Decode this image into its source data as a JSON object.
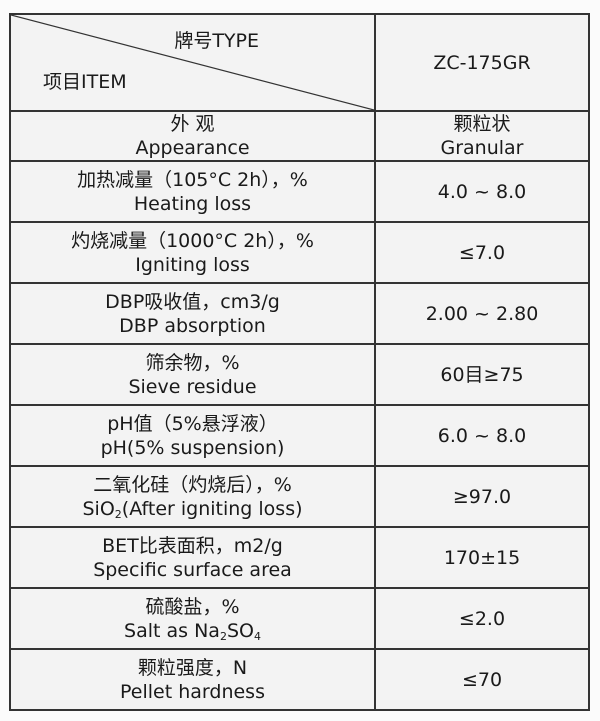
{
  "header": {
    "type_label": "牌号TYPE",
    "item_label": "项目ITEM",
    "product": "ZC-175GR"
  },
  "rows": [
    {
      "zh": "外 观",
      "en": "Appearance",
      "value": "颗粒状",
      "value_en": "Granular"
    },
    {
      "zh": "加热减量（105°C 2h），%",
      "en": "Heating loss",
      "value": "4.0 ~ 8.0"
    },
    {
      "zh": "灼烧减量（1000°C 2h），%",
      "en": "Igniting loss",
      "value": "≤7.0"
    },
    {
      "zh": "DBP吸收值，cm3/g",
      "en": "DBP absorption",
      "value": "2.00 ~ 2.80"
    },
    {
      "zh": "筛余物，%",
      "en": "Sieve residue",
      "value": "60目≥75"
    },
    {
      "zh": "pH值（5%悬浮液）",
      "en": "pH(5% suspension)",
      "value": "6.0 ~ 8.0"
    },
    {
      "zh": "二氧化硅（灼烧后），%",
      "en_a": "SiO",
      "en_sub": "2",
      "en_b": "(After igniting loss)",
      "value": "≥97.0"
    },
    {
      "zh": "BET比表面积，m2/g",
      "en": "Specific surface area",
      "value": "170±15"
    },
    {
      "zh": "硫酸盐，%",
      "en_a": "Salt as Na",
      "en_sub": "2",
      "en_b": "SO",
      "en_sub2": "4",
      "value": "≤2.0"
    },
    {
      "zh": "颗粒强度，N",
      "en": "Pellet hardness",
      "value": "≤70"
    }
  ]
}
